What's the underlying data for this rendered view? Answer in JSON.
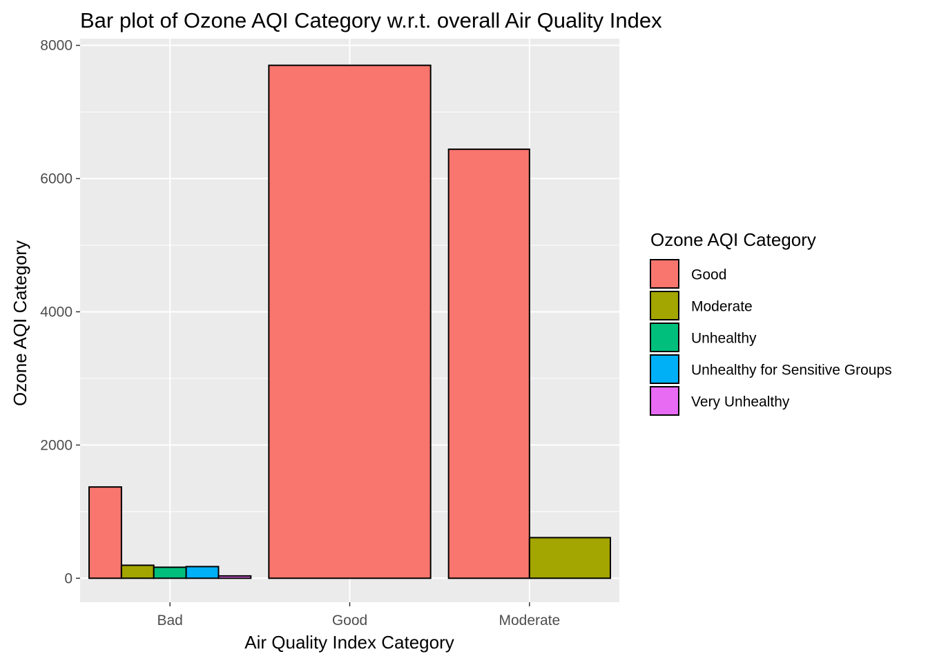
{
  "chart_data": {
    "type": "bar",
    "title": "Bar plot of Ozone AQI Category w.r.t. overall Air Quality Index",
    "xlabel": "Air Quality Index Category",
    "ylabel": "Ozone AQI Category",
    "categories": [
      "Bad",
      "Good",
      "Moderate"
    ],
    "ylim": [
      -360,
      8100
    ],
    "yticks": [
      0,
      2000,
      4000,
      6000,
      8000
    ],
    "grid": true,
    "legend": {
      "title": "Ozone AQI Category",
      "placement": "right"
    },
    "series": [
      {
        "name": "Good",
        "color": "#F8766D"
      },
      {
        "name": "Moderate",
        "color": "#A3A500"
      },
      {
        "name": "Unhealthy",
        "color": "#00BF7D"
      },
      {
        "name": "Unhealthy for Sensitive Groups",
        "color": "#00B0F6"
      },
      {
        "name": "Very Unhealthy",
        "color": "#E76BF3"
      }
    ],
    "groups": [
      {
        "category": "Bad",
        "bars": [
          {
            "series": "Good",
            "value": 1370
          },
          {
            "series": "Moderate",
            "value": 195
          },
          {
            "series": "Unhealthy",
            "value": 165
          },
          {
            "series": "Unhealthy for Sensitive Groups",
            "value": 175
          },
          {
            "series": "Very Unhealthy",
            "value": 35
          }
        ]
      },
      {
        "category": "Good",
        "bars": [
          {
            "series": "Good",
            "value": 7700
          }
        ]
      },
      {
        "category": "Moderate",
        "bars": [
          {
            "series": "Good",
            "value": 6440
          },
          {
            "series": "Moderate",
            "value": 610
          }
        ]
      }
    ]
  }
}
